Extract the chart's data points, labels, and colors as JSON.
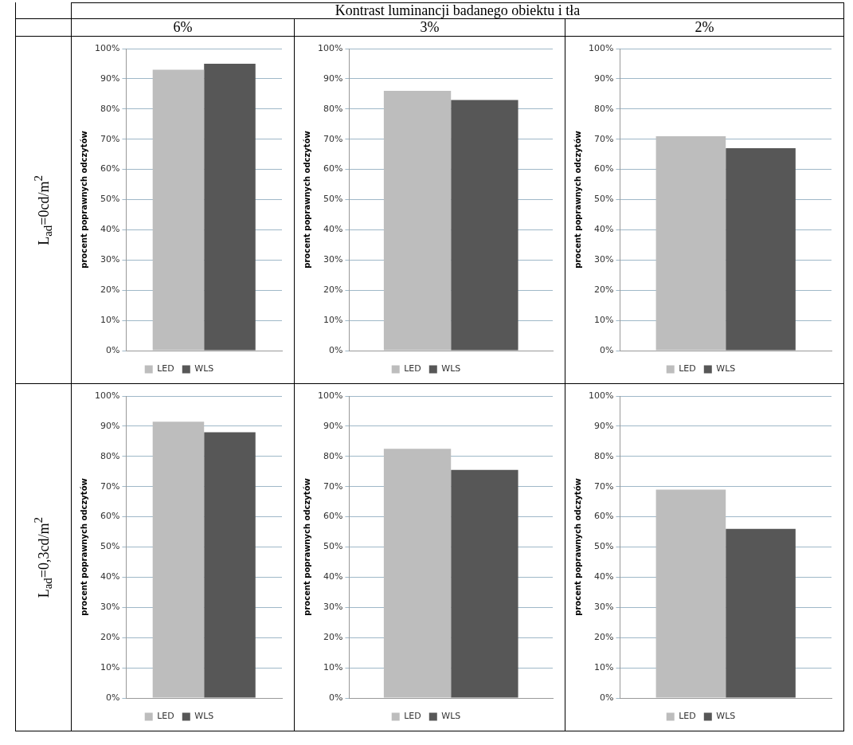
{
  "chart_data": [
    {
      "type": "other",
      "title": "Kontrast luminancji badanego obiektu i tła",
      "annotations": [
        "6%",
        "3%",
        "2%",
        "L$_{ad}$=0cd/m$^{2}$",
        "L$_{ad}$=0,3cd/m$^{2}$"
      ]
    },
    {
      "type": "bar",
      "categories": [
        null
      ],
      "ylabel": "procent poprawnych odczytów",
      "ylim": [
        0,
        100
      ],
      "yticks": [
        {
          "value": 0,
          "label": "0%"
        },
        {
          "value": 10,
          "label": "10%"
        },
        {
          "value": 20,
          "label": "20%"
        },
        {
          "value": 30,
          "label": "30%"
        },
        {
          "value": 40,
          "label": "40%"
        },
        {
          "value": 50,
          "label": "50%"
        },
        {
          "value": 60,
          "label": "60%"
        },
        {
          "value": 70,
          "label": "70%"
        },
        {
          "value": 80,
          "label": "80%"
        },
        {
          "value": 90,
          "label": "90%"
        },
        {
          "value": 100,
          "label": "100%"
        }
      ],
      "grid": "y",
      "legend": "bottom",
      "tick_labels": "y",
      "series": [
        {
          "name": "LED",
          "color": "#bdbdbd",
          "values": [
            93
          ]
        },
        {
          "name": "WLS",
          "color": "#575757",
          "values": [
            95
          ]
        }
      ]
    },
    {
      "type": "bar",
      "categories": [
        null
      ],
      "ylabel": "procent poprawnych odczytów",
      "ylim": [
        0,
        100
      ],
      "yticks": [
        {
          "value": 0,
          "label": "0%"
        },
        {
          "value": 10,
          "label": "10%"
        },
        {
          "value": 20,
          "label": "20%"
        },
        {
          "value": 30,
          "label": "30%"
        },
        {
          "value": 40,
          "label": "40%"
        },
        {
          "value": 50,
          "label": "50%"
        },
        {
          "value": 60,
          "label": "60%"
        },
        {
          "value": 70,
          "label": "70%"
        },
        {
          "value": 80,
          "label": "80%"
        },
        {
          "value": 90,
          "label": "90%"
        },
        {
          "value": 100,
          "label": "100%"
        }
      ],
      "grid": "y",
      "legend": "bottom",
      "tick_labels": "y",
      "series": [
        {
          "name": "LED",
          "color": "#bdbdbd",
          "values": [
            86
          ]
        },
        {
          "name": "WLS",
          "color": "#575757",
          "values": [
            83
          ]
        }
      ]
    },
    {
      "type": "bar",
      "categories": [
        null
      ],
      "ylabel": "procent poprawnych odczytów",
      "ylim": [
        0,
        100
      ],
      "yticks": [
        {
          "value": 0,
          "label": "0%"
        },
        {
          "value": 10,
          "label": "10%"
        },
        {
          "value": 20,
          "label": "20%"
        },
        {
          "value": 30,
          "label": "30%"
        },
        {
          "value": 40,
          "label": "40%"
        },
        {
          "value": 50,
          "label": "50%"
        },
        {
          "value": 60,
          "label": "60%"
        },
        {
          "value": 70,
          "label": "70%"
        },
        {
          "value": 80,
          "label": "80%"
        },
        {
          "value": 90,
          "label": "90%"
        },
        {
          "value": 100,
          "label": "100%"
        }
      ],
      "grid": "y",
      "legend": "bottom",
      "tick_labels": "y",
      "series": [
        {
          "name": "LED",
          "color": "#bdbdbd",
          "values": [
            71
          ]
        },
        {
          "name": "WLS",
          "color": "#575757",
          "values": [
            67
          ]
        }
      ]
    },
    {
      "type": "bar",
      "categories": [
        null
      ],
      "ylabel": "procent poprawnych odczytów",
      "ylim": [
        0,
        100
      ],
      "yticks": [
        {
          "value": 0,
          "label": "0%"
        },
        {
          "value": 10,
          "label": "10%"
        },
        {
          "value": 20,
          "label": "20%"
        },
        {
          "value": 30,
          "label": "30%"
        },
        {
          "value": 40,
          "label": "40%"
        },
        {
          "value": 50,
          "label": "50%"
        },
        {
          "value": 60,
          "label": "60%"
        },
        {
          "value": 70,
          "label": "70%"
        },
        {
          "value": 80,
          "label": "80%"
        },
        {
          "value": 90,
          "label": "90%"
        },
        {
          "value": 100,
          "label": "100%"
        }
      ],
      "grid": "y",
      "legend": "bottom",
      "tick_labels": "y",
      "series": [
        {
          "name": "LED",
          "color": "#bdbdbd",
          "values": [
            91.5
          ]
        },
        {
          "name": "WLS",
          "color": "#575757",
          "values": [
            88
          ]
        }
      ]
    },
    {
      "type": "bar",
      "categories": [
        null
      ],
      "ylabel": "procent poprawnych odczytów",
      "ylim": [
        0,
        100
      ],
      "yticks": [
        {
          "value": 0,
          "label": "0%"
        },
        {
          "value": 10,
          "label": "10%"
        },
        {
          "value": 20,
          "label": "20%"
        },
        {
          "value": 30,
          "label": "30%"
        },
        {
          "value": 40,
          "label": "40%"
        },
        {
          "value": 50,
          "label": "50%"
        },
        {
          "value": 60,
          "label": "60%"
        },
        {
          "value": 70,
          "label": "70%"
        },
        {
          "value": 80,
          "label": "80%"
        },
        {
          "value": 90,
          "label": "90%"
        },
        {
          "value": 100,
          "label": "100%"
        }
      ],
      "grid": "y",
      "legend": "bottom",
      "tick_labels": "y",
      "series": [
        {
          "name": "LED",
          "color": "#bdbdbd",
          "values": [
            82.5
          ]
        },
        {
          "name": "WLS",
          "color": "#575757",
          "values": [
            75.5
          ]
        }
      ]
    },
    {
      "type": "bar",
      "categories": [
        null
      ],
      "ylabel": "procent poprawnych odczytów",
      "ylim": [
        0,
        100
      ],
      "yticks": [
        {
          "value": 0,
          "label": "0%"
        },
        {
          "value": 10,
          "label": "10%"
        },
        {
          "value": 20,
          "label": "20%"
        },
        {
          "value": 30,
          "label": "30%"
        },
        {
          "value": 40,
          "label": "40%"
        },
        {
          "value": 50,
          "label": "50%"
        },
        {
          "value": 60,
          "label": "60%"
        },
        {
          "value": 70,
          "label": "70%"
        },
        {
          "value": 80,
          "label": "80%"
        },
        {
          "value": 90,
          "label": "90%"
        },
        {
          "value": 100,
          "label": "100%"
        }
      ],
      "grid": "y",
      "legend": "bottom",
      "tick_labels": "y",
      "series": [
        {
          "name": "LED",
          "color": "#bdbdbd",
          "values": [
            69
          ]
        },
        {
          "name": "WLS",
          "color": "#575757",
          "values": [
            56
          ]
        }
      ]
    }
  ]
}
